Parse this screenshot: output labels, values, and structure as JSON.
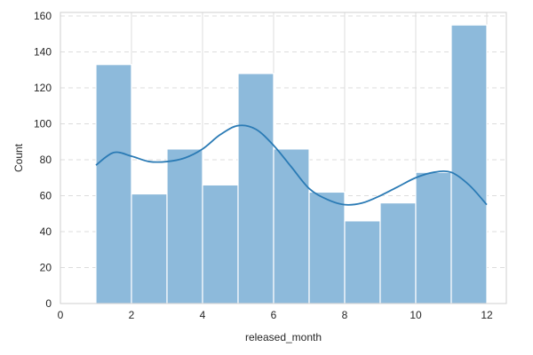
{
  "chart_data": {
    "type": "bar",
    "subtype": "histogram-with-kde",
    "title": "",
    "xlabel": "released_month",
    "ylabel": "Count",
    "xlim": [
      0,
      12.55
    ],
    "ylim": [
      0,
      162
    ],
    "x_ticks": [
      0,
      2,
      4,
      6,
      8,
      10,
      12
    ],
    "y_ticks": [
      0,
      20,
      40,
      60,
      80,
      100,
      120,
      140,
      160
    ],
    "grid": "vertical solid, horizontal dashed",
    "bins": [
      {
        "start": 1.0,
        "end": 2.0,
        "count": 133
      },
      {
        "start": 2.0,
        "end": 3.0,
        "count": 61
      },
      {
        "start": 3.0,
        "end": 4.0,
        "count": 86
      },
      {
        "start": 4.0,
        "end": 5.0,
        "count": 66
      },
      {
        "start": 5.0,
        "end": 6.0,
        "count": 128
      },
      {
        "start": 6.0,
        "end": 7.0,
        "count": 86
      },
      {
        "start": 7.0,
        "end": 8.0,
        "count": 62
      },
      {
        "start": 8.0,
        "end": 9.0,
        "count": 46
      },
      {
        "start": 9.0,
        "end": 10.0,
        "count": 56
      },
      {
        "start": 10.0,
        "end": 11.0,
        "count": 73
      },
      {
        "start": 11.0,
        "end": 12.0,
        "count": 155
      }
    ],
    "kde": {
      "x": [
        1.0,
        1.5,
        2.0,
        2.5,
        3.0,
        3.5,
        4.0,
        4.5,
        5.0,
        5.5,
        6.0,
        6.5,
        7.0,
        7.5,
        8.0,
        8.5,
        9.0,
        9.5,
        10.0,
        10.5,
        11.0,
        11.5,
        12.0
      ],
      "y": [
        77,
        84,
        82,
        79,
        79,
        81,
        86,
        94,
        99,
        97,
        88,
        76,
        64,
        58,
        55,
        56,
        60,
        65,
        70,
        73,
        73,
        66,
        55
      ]
    },
    "colors": {
      "bar_fill": "#8dbadb",
      "bar_edge": "#ffffff",
      "kde_line": "#2b7bb5",
      "grid": "#dcdcdc",
      "axes": "#cfcfcf"
    }
  }
}
